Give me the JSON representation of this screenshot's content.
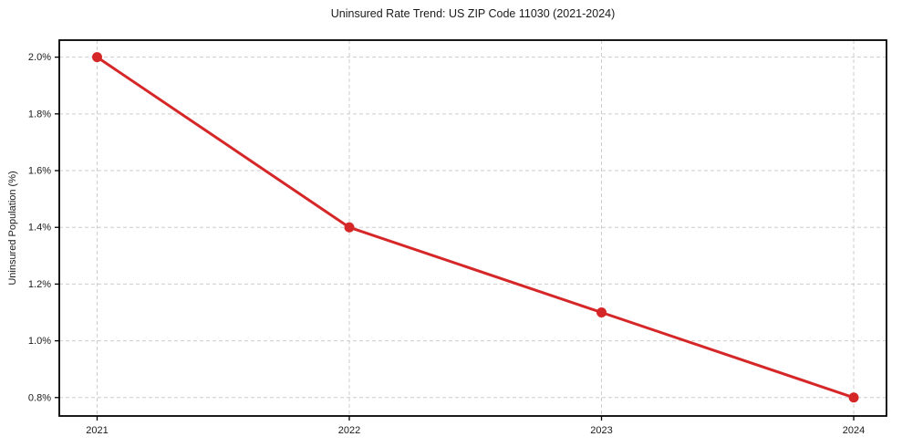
{
  "chart_data": {
    "type": "line",
    "title": "Uninsured Rate Trend: US ZIP Code 11030 (2021-2024)",
    "xlabel": "",
    "ylabel": "Uninsured Population (%)",
    "x": [
      2021,
      2022,
      2023,
      2024
    ],
    "x_tick_labels": [
      "2021",
      "2022",
      "2023",
      "2024"
    ],
    "series": [
      {
        "name": "Uninsured Population (%)",
        "values": [
          2.0,
          1.4,
          1.1,
          0.8
        ]
      }
    ],
    "y_ticks": [
      0.8,
      1.0,
      1.2,
      1.4,
      1.6,
      1.8,
      2.0
    ],
    "y_tick_labels": [
      "0.8%",
      "1.0%",
      "1.2%",
      "1.4%",
      "1.6%",
      "1.8%",
      "2.0%"
    ],
    "xlim": [
      2020.85,
      2024.13
    ],
    "ylim": [
      0.735,
      2.06
    ],
    "grid": true,
    "legend_position": "none",
    "line_color": "#d62728",
    "marker": "circle",
    "grid_color": "#cdcdcd",
    "axis_color": "#000000",
    "background_color": "#ffffff"
  }
}
